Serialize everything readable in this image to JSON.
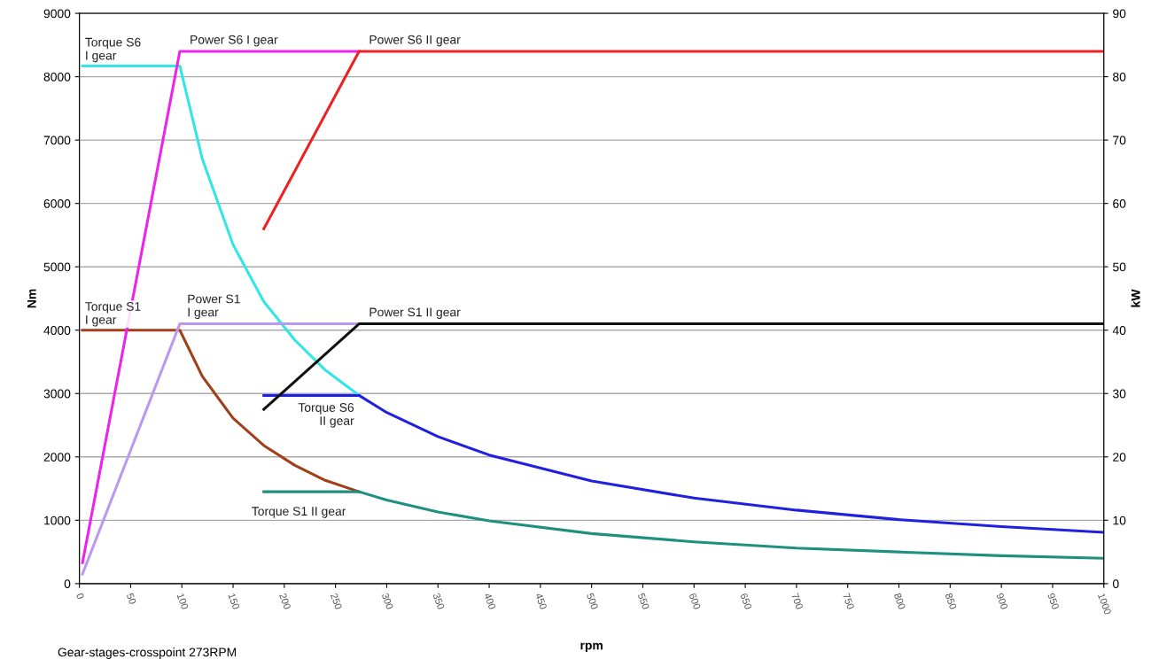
{
  "chart_data": {
    "type": "line",
    "xlabel": "rpm",
    "ylabel": "Nm",
    "y2label": "kW",
    "xlim": [
      0,
      1000
    ],
    "xticks": [
      0,
      50,
      100,
      150,
      200,
      250,
      300,
      350,
      400,
      450,
      500,
      550,
      600,
      650,
      700,
      750,
      800,
      850,
      900,
      950,
      1000
    ],
    "ylim": [
      0,
      9000
    ],
    "yticks": [
      0,
      1000,
      2000,
      3000,
      4000,
      5000,
      6000,
      7000,
      8000,
      9000
    ],
    "y2lim": [
      0,
      90
    ],
    "y2ticks": [
      0,
      10,
      20,
      30,
      40,
      50,
      60,
      70,
      80,
      90
    ],
    "grid": "y",
    "marker": "none",
    "line_style": "solid",
    "series": [
      {
        "name": "Torque S6\nI gear",
        "color": "#33e6e6",
        "x": [
          3,
          98,
          120,
          150,
          180,
          210,
          240,
          273
        ],
        "values": [
          8170,
          8170,
          6700,
          5350,
          4450,
          3850,
          3370,
          2970
        ]
      },
      {
        "name": "Torque S6\nII gear",
        "color": "#2020e0",
        "x": [
          180,
          273,
          300,
          350,
          400,
          500,
          600,
          700,
          800,
          900,
          1000
        ],
        "values": [
          2970,
          2970,
          2700,
          2320,
          2030,
          1620,
          1350,
          1160,
          1010,
          900,
          810
        ]
      },
      {
        "name": "Torque S1\nI gear",
        "color": "#a0401a",
        "x": [
          3,
          98,
          120,
          150,
          180,
          210,
          240,
          273
        ],
        "values": [
          4000,
          4000,
          3270,
          2610,
          2180,
          1870,
          1630,
          1450
        ]
      },
      {
        "name": "Torque S1 II gear",
        "color": "#1f9080",
        "x": [
          180,
          273,
          300,
          350,
          400,
          500,
          600,
          700,
          800,
          900,
          1000
        ],
        "values": [
          1450,
          1450,
          1320,
          1130,
          990,
          790,
          660,
          560,
          500,
          440,
          400
        ]
      },
      {
        "name": "Power S6 I gear",
        "color": "#ee22ee",
        "axis": "y2",
        "x": [
          3,
          98,
          273
        ],
        "values": [
          3.3,
          84,
          84
        ]
      },
      {
        "name": "Power S6 II gear",
        "color": "#ee2222",
        "axis": "y2",
        "x": [
          180,
          273,
          1000
        ],
        "values": [
          56,
          84,
          84
        ]
      },
      {
        "name": "Power S1\nI gear",
        "color": "#bb99ee",
        "axis": "y2",
        "x": [
          3,
          98,
          273
        ],
        "values": [
          1.5,
          41,
          41
        ]
      },
      {
        "name": "Power S1 II gear",
        "color": "#111111",
        "axis": "y2",
        "x": [
          180,
          273,
          1000
        ],
        "values": [
          27.5,
          41,
          41
        ]
      }
    ],
    "annotations": [
      "Gear-stages-crosspoint 273RPM"
    ]
  }
}
